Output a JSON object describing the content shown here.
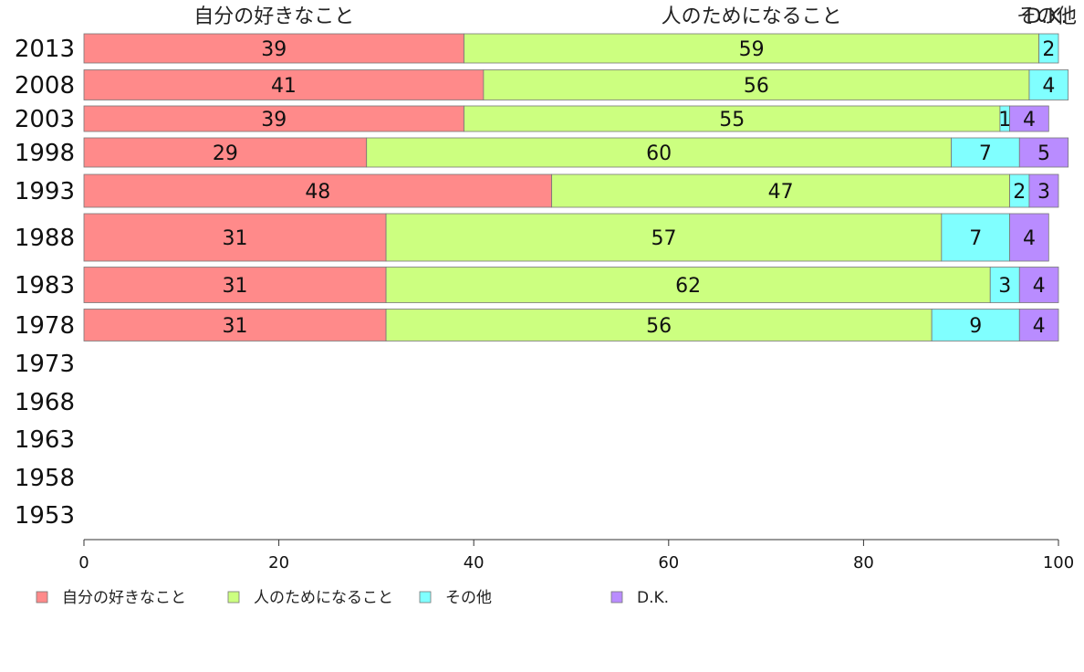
{
  "chart_data": {
    "type": "bar",
    "orientation": "horizontal",
    "stacked": true,
    "categories": [
      "2013",
      "2008",
      "2003",
      "1998",
      "1993",
      "1988",
      "1983",
      "1978",
      "1973",
      "1968",
      "1963",
      "1958",
      "1953"
    ],
    "series": [
      {
        "name": "自分の好きなこと",
        "color": "#ff8a8a",
        "values": [
          39,
          41,
          39,
          29,
          48,
          31,
          31,
          31,
          null,
          null,
          null,
          null,
          null
        ]
      },
      {
        "name": "人のためになること",
        "color": "#ccff80",
        "values": [
          59,
          56,
          55,
          60,
          47,
          57,
          62,
          56,
          null,
          null,
          null,
          null,
          null
        ]
      },
      {
        "name": "その他",
        "color": "#80ffff",
        "values": [
          2,
          4,
          1,
          7,
          2,
          7,
          3,
          9,
          null,
          null,
          null,
          null,
          null
        ]
      },
      {
        "name": "D.K.",
        "color": "#b98cff",
        "values": [
          null,
          null,
          4,
          5,
          3,
          4,
          4,
          4,
          null,
          null,
          null,
          null,
          null
        ]
      }
    ],
    "segment_labels": [
      [
        "39",
        "59",
        "2",
        ""
      ],
      [
        "41",
        "56",
        "4",
        ""
      ],
      [
        "39",
        "55",
        "1",
        "4"
      ],
      [
        "29",
        "60",
        "7",
        "5"
      ],
      [
        "48",
        "47",
        "2",
        "3"
      ],
      [
        "31",
        "57",
        "7",
        "4"
      ],
      [
        "31",
        "62",
        "3",
        "4"
      ],
      [
        "31",
        "56",
        "9",
        "4"
      ]
    ],
    "header_labels": [
      "自分の好きなこと",
      "人のためになること",
      "その他",
      "D.K."
    ],
    "x_ticks": [
      "0",
      "20",
      "40",
      "60",
      "80",
      "100"
    ],
    "xlim": [
      0,
      100
    ],
    "grid": false,
    "legend_position": "bottom-left"
  }
}
